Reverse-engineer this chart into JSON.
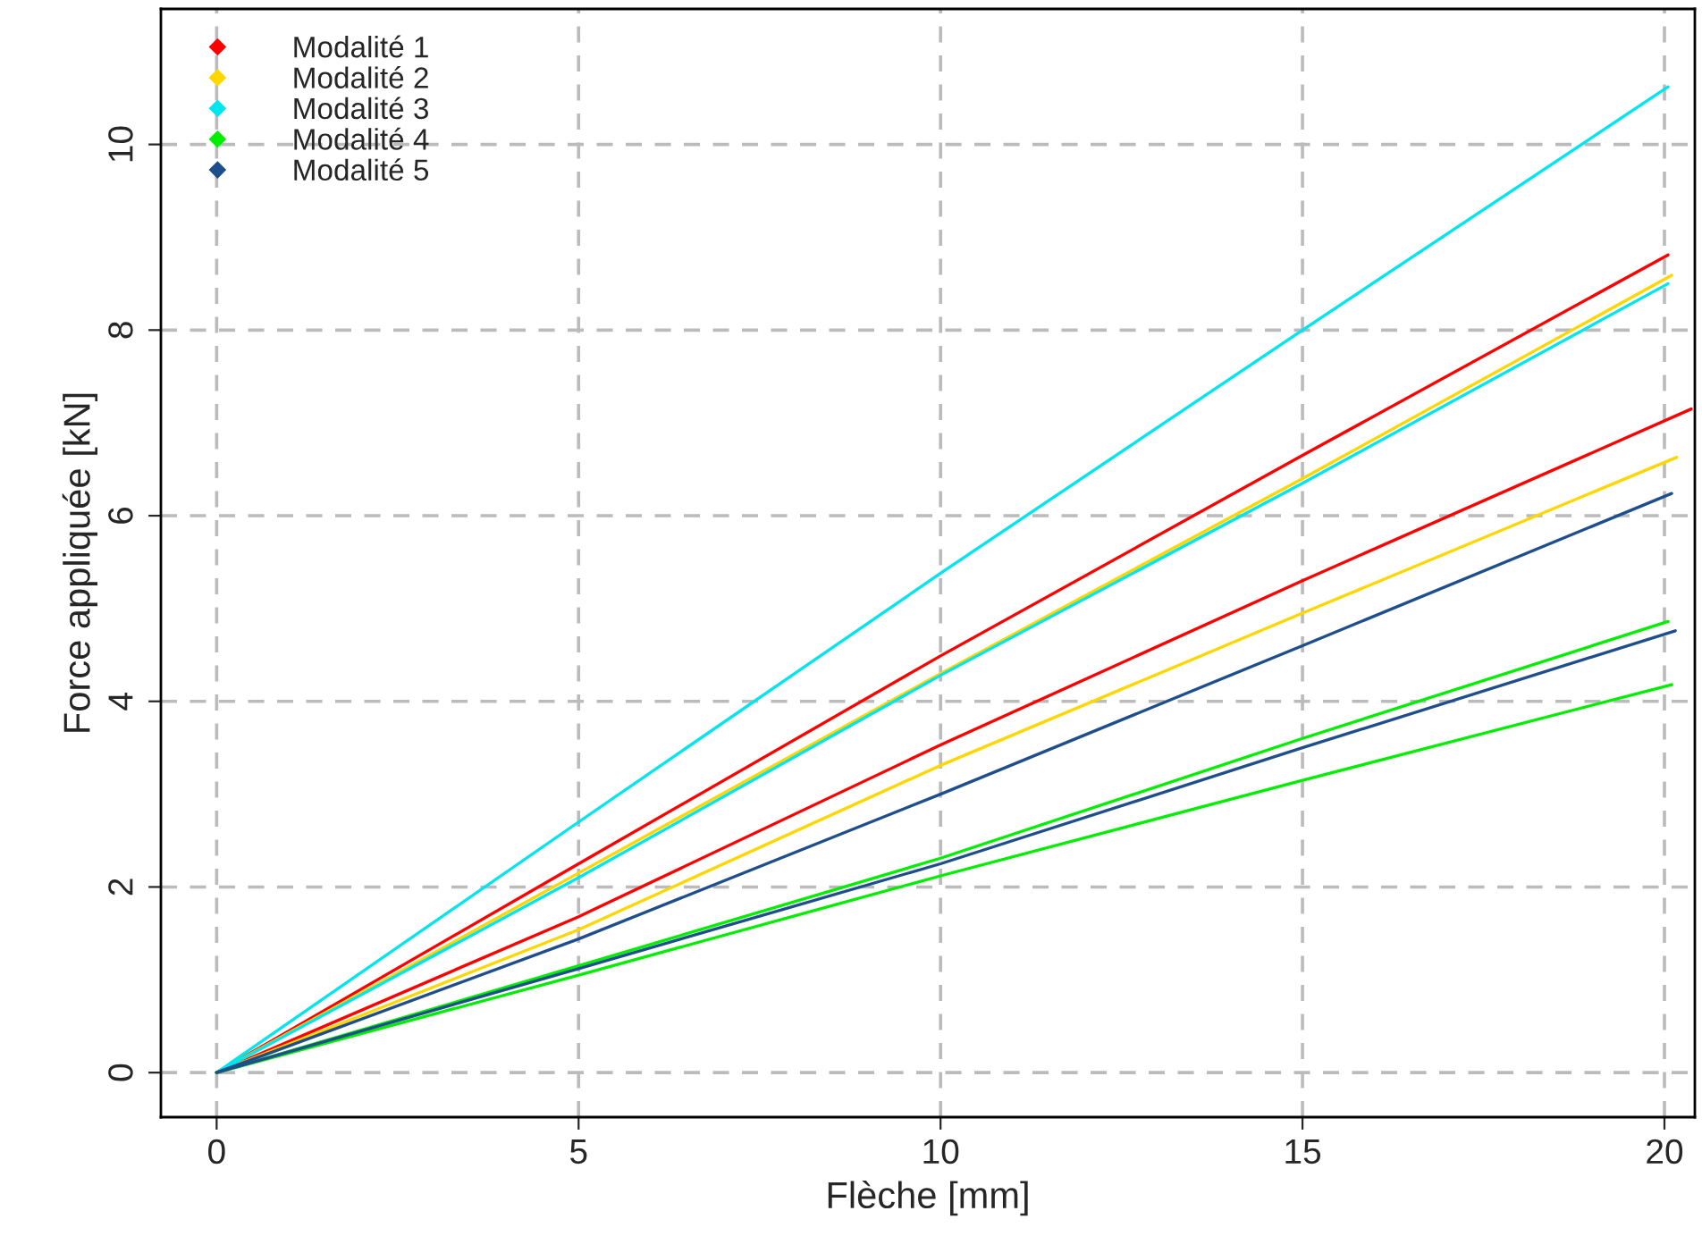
{
  "chart_data": {
    "type": "line",
    "xlabel": "Flèche [mm]",
    "ylabel": "Force appliquée [kN]",
    "xlim": [
      -0.77,
      20.42
    ],
    "ylim": [
      -0.48,
      11.46
    ],
    "xticks": [
      0,
      5,
      10,
      15,
      20
    ],
    "yticks": [
      0,
      2,
      4,
      6,
      8,
      10
    ],
    "grid": true,
    "legend": "top left",
    "line_style": "solid",
    "series": [
      {
        "name": "Modalité 1",
        "color": "#ff0000",
        "x": [
          0,
          5,
          10,
          15,
          20.05
        ],
        "values": [
          0,
          2.25,
          4.49,
          6.65,
          8.81
        ]
      },
      {
        "color": "#ff0000",
        "x": [
          0,
          5,
          10,
          15,
          20.37
        ],
        "values": [
          0,
          1.68,
          3.53,
          5.3,
          7.15
        ]
      },
      {
        "name": "Modalité 2",
        "color": "#ffd700",
        "x": [
          0,
          5,
          10,
          15,
          20.1
        ],
        "values": [
          0,
          2.15,
          4.3,
          6.4,
          8.59
        ]
      },
      {
        "color": "#ffd700",
        "x": [
          0,
          5,
          10,
          15,
          20.17
        ],
        "values": [
          0,
          1.54,
          3.31,
          4.95,
          6.63
        ]
      },
      {
        "name": "Modalité 3",
        "color": "#00e5ee",
        "x": [
          0,
          5,
          10,
          15,
          20.05
        ],
        "values": [
          0,
          2.7,
          5.38,
          8.0,
          10.62
        ]
      },
      {
        "color": "#00e5ee",
        "x": [
          0,
          5,
          10,
          15,
          20.05
        ],
        "values": [
          0,
          2.1,
          4.28,
          6.35,
          8.5
        ]
      },
      {
        "name": "Modalité 4",
        "color": "#00ee00",
        "x": [
          0,
          5,
          10,
          15,
          20.05
        ],
        "values": [
          0,
          1.15,
          2.31,
          3.6,
          4.86
        ]
      },
      {
        "color": "#00ee00",
        "x": [
          0,
          5,
          10,
          15,
          20.1
        ],
        "values": [
          0,
          1.05,
          2.12,
          3.15,
          4.18
        ]
      },
      {
        "name": "Modalité 5",
        "color": "#1f4e8c",
        "x": [
          0,
          5,
          10,
          15,
          20.1
        ],
        "values": [
          0,
          1.44,
          3.0,
          4.6,
          6.24
        ]
      },
      {
        "color": "#1f4e8c",
        "x": [
          0,
          5,
          10,
          15,
          20.15
        ],
        "values": [
          0,
          1.12,
          2.25,
          3.5,
          4.76
        ]
      }
    ]
  }
}
